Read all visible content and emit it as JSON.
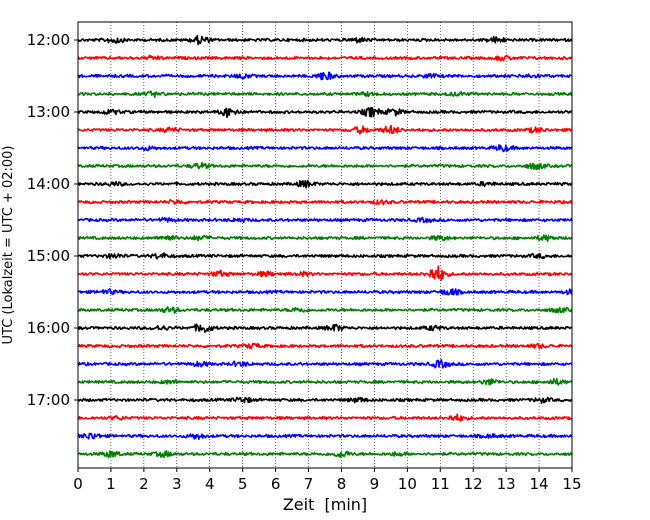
{
  "chart_data": {
    "type": "line",
    "title": "",
    "xlabel": "Zeit  [min]",
    "ylabel": "UTC (Lokalzeit = UTC + 02:00)",
    "xlim": [
      0,
      15
    ],
    "x_ticks": [
      0,
      1,
      2,
      3,
      4,
      5,
      6,
      7,
      8,
      9,
      10,
      11,
      12,
      13,
      14,
      15
    ],
    "x_tick_labels": [
      "0",
      "1",
      "2",
      "3",
      "4",
      "5",
      "6",
      "7",
      "8",
      "9",
      "10",
      "11",
      "12",
      "13",
      "14",
      "15"
    ],
    "y_tick_labels": [
      "12:00",
      "13:00",
      "14:00",
      "15:00",
      "16:00",
      "17:00"
    ],
    "grid": {
      "x": true,
      "y": false,
      "style": "dotted"
    },
    "legend": "none",
    "trace_interval_min": 15,
    "trace_colors": [
      "#000000",
      "#ff0000",
      "#0000ff",
      "#008000"
    ],
    "traces": [
      {
        "start": "12:00",
        "color": "#000000",
        "events": [
          [
            1.1,
            0.6
          ],
          [
            3.7,
            0.8
          ],
          [
            8.5,
            0.4
          ],
          [
            12.7,
            0.5
          ]
        ]
      },
      {
        "start": "12:15",
        "color": "#ff0000",
        "events": [
          [
            2.3,
            0.3
          ],
          [
            12.9,
            0.4
          ]
        ]
      },
      {
        "start": "12:30",
        "color": "#0000ff",
        "events": [
          [
            5.0,
            0.4
          ],
          [
            7.5,
            0.8
          ],
          [
            10.7,
            0.3
          ],
          [
            13.8,
            0.3
          ]
        ]
      },
      {
        "start": "12:45",
        "color": "#008000",
        "events": [
          [
            2.3,
            0.4
          ],
          [
            8.8,
            0.3
          ],
          [
            11.5,
            0.3
          ]
        ]
      },
      {
        "start": "13:00",
        "color": "#000000",
        "events": [
          [
            1.0,
            0.4
          ],
          [
            4.6,
            1.0
          ],
          [
            8.9,
            0.9
          ],
          [
            9.6,
            0.6
          ]
        ]
      },
      {
        "start": "13:15",
        "color": "#ff0000",
        "events": [
          [
            2.8,
            0.4
          ],
          [
            8.6,
            0.6
          ],
          [
            9.5,
            0.8
          ],
          [
            13.9,
            0.4
          ]
        ]
      },
      {
        "start": "13:30",
        "color": "#0000ff",
        "events": [
          [
            2.1,
            0.3
          ],
          [
            12.9,
            0.6
          ]
        ]
      },
      {
        "start": "13:45",
        "color": "#008000",
        "events": [
          [
            3.7,
            0.5
          ],
          [
            13.9,
            0.6
          ]
        ]
      },
      {
        "start": "14:00",
        "color": "#000000",
        "events": [
          [
            1.1,
            0.3
          ],
          [
            6.9,
            0.6
          ],
          [
            12.4,
            0.3
          ]
        ]
      },
      {
        "start": "14:15",
        "color": "#ff0000",
        "events": [
          [
            3.0,
            0.3
          ],
          [
            9.2,
            0.3
          ]
        ]
      },
      {
        "start": "14:30",
        "color": "#0000ff",
        "events": [
          [
            2.7,
            0.3
          ],
          [
            4.9,
            0.3
          ],
          [
            10.5,
            0.3
          ]
        ]
      },
      {
        "start": "14:45",
        "color": "#008000",
        "events": [
          [
            2.7,
            0.5
          ],
          [
            3.7,
            0.4
          ],
          [
            11.0,
            0.4
          ],
          [
            14.2,
            0.5
          ]
        ]
      },
      {
        "start": "15:00",
        "color": "#000000",
        "events": [
          [
            1.1,
            0.4
          ],
          [
            2.5,
            0.5
          ],
          [
            14.0,
            0.3
          ]
        ]
      },
      {
        "start": "15:15",
        "color": "#ff0000",
        "events": [
          [
            4.3,
            0.5
          ],
          [
            5.7,
            0.4
          ],
          [
            6.8,
            0.3
          ],
          [
            10.9,
            1.6
          ]
        ]
      },
      {
        "start": "15:30",
        "color": "#0000ff",
        "events": [
          [
            0.9,
            0.4
          ],
          [
            11.3,
            0.6
          ],
          [
            15.0,
            0.4
          ]
        ]
      },
      {
        "start": "15:45",
        "color": "#008000",
        "events": [
          [
            2.8,
            0.5
          ],
          [
            6.7,
            0.4
          ],
          [
            14.6,
            0.4
          ]
        ]
      },
      {
        "start": "16:00",
        "color": "#000000",
        "events": [
          [
            2.5,
            0.4
          ],
          [
            3.8,
            0.9
          ],
          [
            7.8,
            0.6
          ],
          [
            10.8,
            0.4
          ]
        ]
      },
      {
        "start": "16:15",
        "color": "#ff0000",
        "events": [
          [
            5.3,
            0.4
          ],
          [
            14.0,
            0.3
          ]
        ]
      },
      {
        "start": "16:30",
        "color": "#0000ff",
        "events": [
          [
            3.7,
            0.4
          ],
          [
            4.9,
            0.4
          ],
          [
            11.0,
            0.7
          ]
        ]
      },
      {
        "start": "16:45",
        "color": "#008000",
        "events": [
          [
            2.8,
            0.3
          ],
          [
            12.5,
            0.5
          ],
          [
            14.5,
            0.5
          ]
        ]
      },
      {
        "start": "17:00",
        "color": "#000000",
        "events": [
          [
            5.0,
            0.5
          ],
          [
            8.5,
            0.4
          ],
          [
            14.1,
            0.4
          ]
        ]
      },
      {
        "start": "17:15",
        "color": "#ff0000",
        "events": [
          [
            1.2,
            0.3
          ],
          [
            11.5,
            0.6
          ]
        ]
      },
      {
        "start": "17:30",
        "color": "#0000ff",
        "events": [
          [
            0.4,
            0.6
          ],
          [
            3.6,
            0.5
          ],
          [
            12.5,
            0.3
          ]
        ]
      },
      {
        "start": "17:45",
        "color": "#008000",
        "events": [
          [
            1.0,
            0.6
          ],
          [
            2.6,
            0.5
          ],
          [
            8.0,
            0.6
          ],
          [
            9.7,
            0.3
          ]
        ]
      }
    ]
  }
}
